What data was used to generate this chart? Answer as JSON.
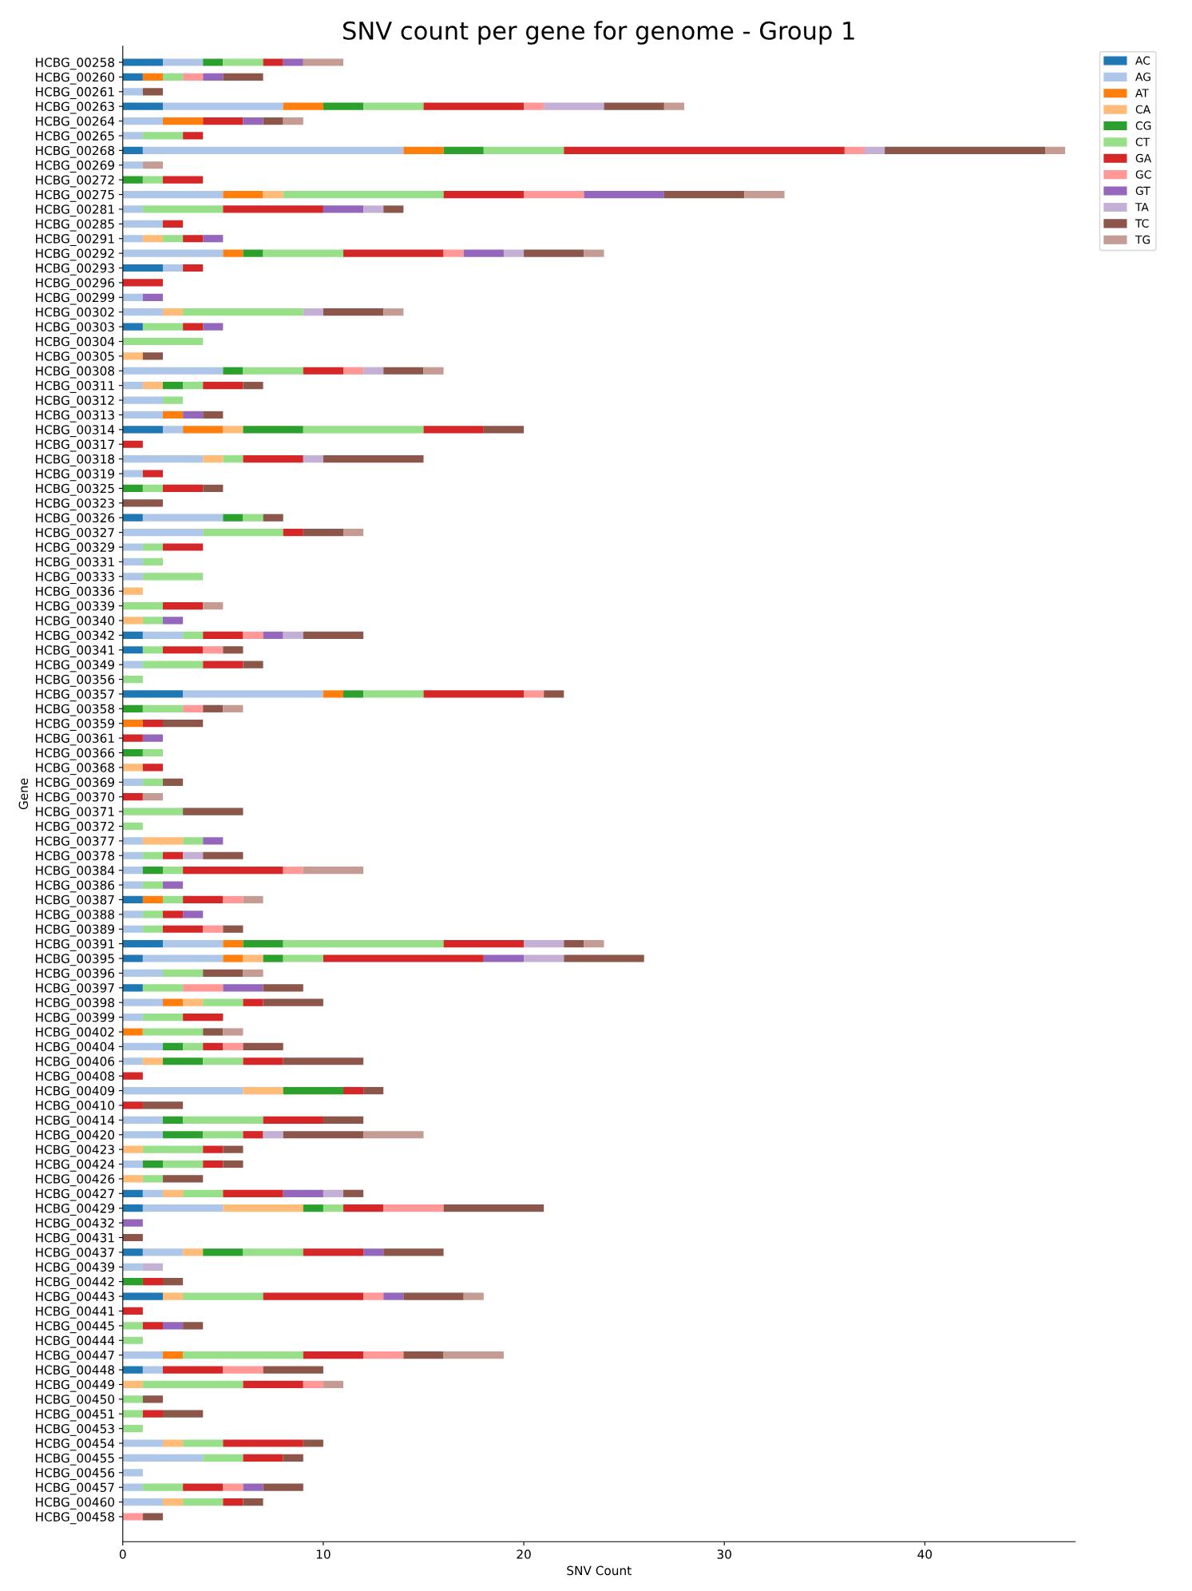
{
  "chart_data": {
    "type": "bar",
    "orientation": "horizontal",
    "stacked": true,
    "title": "SNV count per gene for genome - Group 1",
    "xlabel": "SNV Count",
    "ylabel": "Gene",
    "categories": [
      "HCBG_00258",
      "HCBG_00260",
      "HCBG_00261",
      "HCBG_00263",
      "HCBG_00264",
      "HCBG_00265",
      "HCBG_00268",
      "HCBG_00269",
      "HCBG_00272",
      "HCBG_00275",
      "HCBG_00281",
      "HCBG_00285",
      "HCBG_00291",
      "HCBG_00292",
      "HCBG_00293",
      "HCBG_00296",
      "HCBG_00299",
      "HCBG_00302",
      "HCBG_00303",
      "HCBG_00304",
      "HCBG_00305",
      "HCBG_00308",
      "HCBG_00311",
      "HCBG_00312",
      "HCBG_00313",
      "HCBG_00314",
      "HCBG_00317",
      "HCBG_00318",
      "HCBG_00319",
      "HCBG_00325",
      "HCBG_00323",
      "HCBG_00326",
      "HCBG_00327",
      "HCBG_00329",
      "HCBG_00331",
      "HCBG_00333",
      "HCBG_00336",
      "HCBG_00339",
      "HCBG_00340",
      "HCBG_00342",
      "HCBG_00341",
      "HCBG_00349",
      "HCBG_00356",
      "HCBG_00357",
      "HCBG_00358",
      "HCBG_00359",
      "HCBG_00361",
      "HCBG_00366",
      "HCBG_00368",
      "HCBG_00369",
      "HCBG_00370",
      "HCBG_00371",
      "HCBG_00372",
      "HCBG_00377",
      "HCBG_00378",
      "HCBG_00384",
      "HCBG_00386",
      "HCBG_00387",
      "HCBG_00388",
      "HCBG_00389",
      "HCBG_00391",
      "HCBG_00395",
      "HCBG_00396",
      "HCBG_00397",
      "HCBG_00398",
      "HCBG_00399",
      "HCBG_00402",
      "HCBG_00404",
      "HCBG_00406",
      "HCBG_00408",
      "HCBG_00409",
      "HCBG_00410",
      "HCBG_00414",
      "HCBG_00420",
      "HCBG_00423",
      "HCBG_00424",
      "HCBG_00426",
      "HCBG_00427",
      "HCBG_00429",
      "HCBG_00432",
      "HCBG_00431",
      "HCBG_00437",
      "HCBG_00439",
      "HCBG_00442",
      "HCBG_00443",
      "HCBG_00441",
      "HCBG_00445",
      "HCBG_00444",
      "HCBG_00447",
      "HCBG_00448",
      "HCBG_00449",
      "HCBG_00450",
      "HCBG_00451",
      "HCBG_00453",
      "HCBG_00454",
      "HCBG_00455",
      "HCBG_00456",
      "HCBG_00457",
      "HCBG_00460",
      "HCBG_00458"
    ],
    "series": [
      {
        "name": "AC",
        "color": "#1f77b4",
        "values": [
          2,
          1,
          0,
          2,
          0,
          0,
          1,
          0,
          0,
          0,
          0,
          0,
          0,
          0,
          2,
          0,
          0,
          0,
          1,
          0,
          0,
          0,
          0,
          0,
          0,
          2,
          0,
          0,
          0,
          0,
          0,
          1,
          0,
          0,
          0,
          0,
          0,
          0,
          0,
          1,
          1,
          0,
          0,
          3,
          0,
          0,
          0,
          0,
          0,
          0,
          0,
          0,
          0,
          0,
          0,
          0,
          0,
          1,
          0,
          0,
          2,
          1,
          0,
          1,
          0,
          0,
          0,
          0,
          0,
          0,
          0,
          0,
          0,
          0,
          0,
          0,
          0,
          1,
          1,
          0,
          0,
          1,
          0,
          0,
          2,
          0,
          0,
          0,
          0,
          1,
          0,
          0,
          0,
          0,
          0,
          0,
          0,
          0,
          0,
          0
        ]
      },
      {
        "name": "AG",
        "color": "#aec7e8",
        "values": [
          2,
          0,
          1,
          6,
          2,
          1,
          13,
          1,
          0,
          5,
          1,
          2,
          1,
          5,
          1,
          0,
          1,
          2,
          0,
          0,
          0,
          5,
          1,
          2,
          2,
          1,
          0,
          4,
          1,
          0,
          0,
          4,
          4,
          1,
          1,
          1,
          0,
          0,
          0,
          2,
          0,
          1,
          0,
          7,
          0,
          0,
          0,
          0,
          0,
          1,
          0,
          0,
          0,
          1,
          1,
          1,
          1,
          0,
          1,
          1,
          3,
          4,
          2,
          0,
          2,
          1,
          0,
          2,
          1,
          0,
          6,
          0,
          2,
          2,
          0,
          1,
          0,
          1,
          4,
          0,
          0,
          2,
          1,
          0,
          0,
          0,
          0,
          0,
          2,
          1,
          0,
          0,
          0,
          0,
          2,
          4,
          1,
          1,
          2,
          0
        ]
      },
      {
        "name": "AT",
        "color": "#ff7f0e",
        "values": [
          0,
          1,
          0,
          2,
          2,
          0,
          2,
          0,
          0,
          2,
          0,
          0,
          0,
          1,
          0,
          0,
          0,
          0,
          0,
          0,
          0,
          0,
          0,
          0,
          1,
          2,
          0,
          0,
          0,
          0,
          0,
          0,
          0,
          0,
          0,
          0,
          0,
          0,
          0,
          0,
          0,
          0,
          0,
          1,
          0,
          1,
          0,
          0,
          0,
          0,
          0,
          0,
          0,
          0,
          0,
          0,
          0,
          1,
          0,
          0,
          1,
          1,
          0,
          0,
          1,
          0,
          1,
          0,
          0,
          0,
          0,
          0,
          0,
          0,
          0,
          0,
          0,
          0,
          0,
          0,
          0,
          0,
          0,
          0,
          0,
          0,
          0,
          0,
          1,
          0,
          0,
          0,
          0,
          0,
          0,
          0,
          0,
          0,
          0,
          0
        ]
      },
      {
        "name": "CA",
        "color": "#ffbb78",
        "values": [
          0,
          0,
          0,
          0,
          0,
          0,
          0,
          0,
          0,
          1,
          0,
          0,
          1,
          0,
          0,
          0,
          0,
          1,
          0,
          0,
          1,
          0,
          1,
          0,
          0,
          1,
          0,
          1,
          0,
          0,
          0,
          0,
          0,
          0,
          0,
          0,
          1,
          0,
          1,
          0,
          0,
          0,
          0,
          0,
          0,
          0,
          0,
          0,
          1,
          0,
          0,
          0,
          0,
          2,
          0,
          0,
          0,
          0,
          0,
          0,
          0,
          1,
          0,
          0,
          1,
          0,
          0,
          0,
          1,
          0,
          2,
          0,
          0,
          0,
          1,
          0,
          1,
          1,
          4,
          0,
          0,
          1,
          0,
          0,
          1,
          0,
          0,
          0,
          0,
          0,
          1,
          0,
          0,
          0,
          1,
          0,
          0,
          0,
          1,
          0
        ]
      },
      {
        "name": "CG",
        "color": "#2ca02c",
        "values": [
          1,
          0,
          0,
          2,
          0,
          0,
          2,
          0,
          1,
          0,
          0,
          0,
          0,
          1,
          0,
          0,
          0,
          0,
          0,
          0,
          0,
          1,
          1,
          0,
          0,
          3,
          0,
          0,
          0,
          1,
          0,
          1,
          0,
          0,
          0,
          0,
          0,
          0,
          0,
          0,
          0,
          0,
          0,
          1,
          1,
          0,
          0,
          1,
          0,
          0,
          0,
          0,
          0,
          0,
          0,
          1,
          0,
          0,
          0,
          0,
          2,
          1,
          0,
          0,
          0,
          0,
          0,
          1,
          2,
          0,
          3,
          0,
          1,
          2,
          0,
          1,
          0,
          0,
          1,
          0,
          0,
          2,
          0,
          1,
          0,
          0,
          0,
          0,
          0,
          0,
          0,
          0,
          0,
          0,
          0,
          0,
          0,
          0,
          0,
          0
        ]
      },
      {
        "name": "CT",
        "color": "#98df8a",
        "values": [
          2,
          1,
          0,
          3,
          0,
          2,
          4,
          0,
          1,
          8,
          4,
          0,
          1,
          4,
          0,
          0,
          0,
          6,
          2,
          4,
          0,
          3,
          1,
          1,
          0,
          6,
          0,
          1,
          0,
          1,
          0,
          1,
          4,
          1,
          1,
          3,
          0,
          2,
          1,
          1,
          1,
          3,
          1,
          3,
          2,
          0,
          0,
          1,
          0,
          1,
          0,
          3,
          1,
          1,
          1,
          1,
          1,
          1,
          1,
          1,
          8,
          2,
          2,
          2,
          2,
          2,
          3,
          1,
          2,
          0,
          0,
          0,
          4,
          2,
          3,
          2,
          1,
          2,
          1,
          0,
          0,
          3,
          0,
          0,
          4,
          0,
          1,
          1,
          6,
          0,
          5,
          1,
          1,
          1,
          2,
          2,
          0,
          2,
          2,
          0
        ]
      },
      {
        "name": "GA",
        "color": "#d62728",
        "values": [
          1,
          0,
          0,
          5,
          2,
          1,
          14,
          0,
          2,
          4,
          5,
          1,
          1,
          5,
          1,
          2,
          0,
          0,
          1,
          0,
          0,
          2,
          2,
          0,
          0,
          3,
          1,
          3,
          1,
          2,
          0,
          0,
          1,
          2,
          0,
          0,
          0,
          2,
          0,
          2,
          2,
          2,
          0,
          5,
          0,
          1,
          1,
          0,
          1,
          0,
          1,
          0,
          0,
          0,
          1,
          5,
          0,
          2,
          1,
          2,
          4,
          8,
          0,
          0,
          1,
          2,
          0,
          1,
          2,
          1,
          1,
          1,
          3,
          1,
          1,
          1,
          0,
          3,
          2,
          0,
          0,
          3,
          0,
          1,
          5,
          1,
          1,
          0,
          3,
          3,
          3,
          0,
          1,
          0,
          4,
          2,
          0,
          2,
          1,
          0
        ]
      },
      {
        "name": "GC",
        "color": "#ff9896",
        "values": [
          0,
          1,
          0,
          1,
          0,
          0,
          1,
          0,
          0,
          3,
          0,
          0,
          0,
          1,
          0,
          0,
          0,
          0,
          0,
          0,
          0,
          1,
          0,
          0,
          0,
          0,
          0,
          0,
          0,
          0,
          0,
          0,
          0,
          0,
          0,
          0,
          0,
          0,
          0,
          1,
          1,
          0,
          0,
          1,
          1,
          0,
          0,
          0,
          0,
          0,
          0,
          0,
          0,
          0,
          0,
          1,
          0,
          1,
          0,
          1,
          0,
          0,
          0,
          2,
          0,
          0,
          0,
          1,
          0,
          0,
          0,
          0,
          0,
          0,
          0,
          0,
          0,
          0,
          3,
          0,
          0,
          0,
          0,
          0,
          1,
          0,
          0,
          0,
          2,
          2,
          1,
          0,
          0,
          0,
          0,
          0,
          0,
          1,
          0,
          1
        ]
      },
      {
        "name": "GT",
        "color": "#9467bd",
        "values": [
          1,
          1,
          0,
          0,
          1,
          0,
          0,
          0,
          0,
          4,
          2,
          0,
          1,
          2,
          0,
          0,
          1,
          0,
          1,
          0,
          0,
          0,
          0,
          0,
          1,
          0,
          0,
          0,
          0,
          0,
          0,
          0,
          0,
          0,
          0,
          0,
          0,
          0,
          1,
          1,
          0,
          0,
          0,
          0,
          0,
          0,
          1,
          0,
          0,
          0,
          0,
          0,
          0,
          1,
          0,
          0,
          1,
          0,
          1,
          0,
          0,
          2,
          0,
          2,
          0,
          0,
          0,
          0,
          0,
          0,
          0,
          0,
          0,
          0,
          0,
          0,
          0,
          2,
          0,
          1,
          0,
          1,
          0,
          0,
          1,
          0,
          1,
          0,
          0,
          0,
          0,
          0,
          0,
          0,
          0,
          0,
          0,
          1,
          0,
          0
        ]
      },
      {
        "name": "TA",
        "color": "#c5b0d5",
        "values": [
          0,
          0,
          0,
          3,
          0,
          0,
          1,
          0,
          0,
          0,
          1,
          0,
          0,
          1,
          0,
          0,
          0,
          1,
          0,
          0,
          0,
          1,
          0,
          0,
          0,
          0,
          0,
          1,
          0,
          0,
          0,
          0,
          0,
          0,
          0,
          0,
          0,
          0,
          0,
          1,
          0,
          0,
          0,
          0,
          0,
          0,
          0,
          0,
          0,
          0,
          0,
          0,
          0,
          0,
          1,
          0,
          0,
          0,
          0,
          0,
          2,
          2,
          0,
          0,
          0,
          0,
          0,
          0,
          0,
          0,
          0,
          0,
          0,
          1,
          0,
          0,
          0,
          1,
          0,
          0,
          0,
          0,
          1,
          0,
          0,
          0,
          0,
          0,
          0,
          0,
          0,
          0,
          0,
          0,
          0,
          0,
          0,
          0,
          0,
          0
        ]
      },
      {
        "name": "TC",
        "color": "#8c564b",
        "values": [
          0,
          2,
          1,
          3,
          1,
          0,
          8,
          0,
          0,
          4,
          1,
          0,
          0,
          3,
          0,
          0,
          0,
          3,
          0,
          0,
          1,
          2,
          1,
          0,
          1,
          2,
          0,
          5,
          0,
          1,
          2,
          1,
          2,
          0,
          0,
          0,
          0,
          0,
          0,
          3,
          1,
          1,
          0,
          1,
          1,
          2,
          0,
          0,
          0,
          1,
          0,
          3,
          0,
          0,
          2,
          0,
          0,
          0,
          0,
          1,
          1,
          4,
          2,
          2,
          3,
          0,
          1,
          2,
          4,
          0,
          1,
          2,
          2,
          4,
          1,
          1,
          2,
          1,
          5,
          0,
          1,
          3,
          0,
          1,
          3,
          0,
          1,
          0,
          2,
          3,
          0,
          1,
          2,
          0,
          1,
          1,
          0,
          2,
          1,
          1
        ]
      },
      {
        "name": "TG",
        "color": "#c49c94",
        "values": [
          2,
          0,
          0,
          1,
          1,
          0,
          1,
          1,
          0,
          2,
          0,
          0,
          0,
          1,
          0,
          0,
          0,
          1,
          0,
          0,
          0,
          1,
          0,
          0,
          0,
          0,
          0,
          0,
          0,
          0,
          0,
          0,
          1,
          0,
          0,
          0,
          0,
          1,
          0,
          0,
          0,
          0,
          0,
          0,
          1,
          0,
          0,
          0,
          0,
          0,
          1,
          0,
          0,
          0,
          0,
          3,
          0,
          1,
          0,
          0,
          1,
          0,
          1,
          0,
          0,
          0,
          1,
          0,
          0,
          0,
          0,
          0,
          0,
          3,
          0,
          0,
          0,
          0,
          0,
          0,
          0,
          0,
          0,
          0,
          1,
          0,
          0,
          0,
          3,
          0,
          1,
          0,
          0,
          0,
          0,
          0,
          0,
          0,
          0,
          0
        ]
      }
    ],
    "xlim": [
      0,
      47.5
    ],
    "xticks": [
      0,
      10,
      20,
      30,
      40
    ],
    "grid": false,
    "legend": "top right"
  }
}
